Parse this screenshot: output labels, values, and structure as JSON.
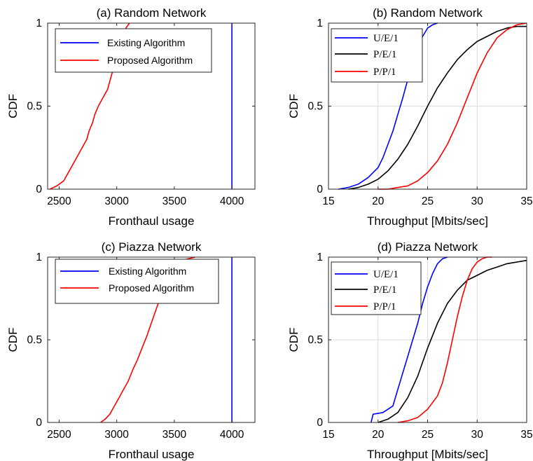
{
  "colors": {
    "blue": "#0000ff",
    "red": "#ff0000",
    "black": "#000000",
    "grid": "#dedede",
    "axes": "#262626"
  },
  "chart_data": [
    {
      "type": "line",
      "title": "(a) Random Network",
      "xlabel": "Fronthaul usage",
      "ylabel": "CDF",
      "xlim": [
        2400,
        4200
      ],
      "ylim": [
        0,
        1
      ],
      "xticks": [
        2500,
        3000,
        3500,
        4000
      ],
      "yticks": [
        0,
        0.5,
        1
      ],
      "xtick_labels": [
        "2500",
        "3000",
        "3500",
        "4000"
      ],
      "ytick_labels": [
        "0",
        "0.5",
        "1"
      ],
      "grid": false,
      "legend": {
        "location": "top-left",
        "font": "sans"
      },
      "series": [
        {
          "name": "Existing Algorithm",
          "color": "#0000ff",
          "x": [
            4000,
            4000
          ],
          "y": [
            0,
            1
          ]
        },
        {
          "name": "Proposed Algorithm",
          "color": "#ff0000",
          "x": [
            2420,
            2480,
            2540,
            2580,
            2620,
            2660,
            2700,
            2740,
            2760,
            2790,
            2810,
            2840,
            2880,
            2920,
            2960,
            2990,
            3020,
            3060,
            3090,
            3110
          ],
          "y": [
            0.0,
            0.02,
            0.05,
            0.1,
            0.15,
            0.2,
            0.25,
            0.3,
            0.35,
            0.4,
            0.45,
            0.5,
            0.55,
            0.6,
            0.7,
            0.8,
            0.9,
            0.95,
            0.98,
            1.0
          ]
        }
      ]
    },
    {
      "type": "line",
      "title": "(b) Random Network",
      "xlabel": "Throughput [Mbits/sec]",
      "ylabel": "CDF",
      "xlim": [
        15,
        35
      ],
      "ylim": [
        0,
        1
      ],
      "xticks": [
        15,
        20,
        25,
        30,
        35
      ],
      "yticks": [
        0,
        0.5,
        1
      ],
      "xtick_labels": [
        "15",
        "20",
        "25",
        "30",
        "35"
      ],
      "ytick_labels": [
        "0",
        "0.5",
        "1"
      ],
      "grid": true,
      "legend": {
        "location": "top-left",
        "font": "serif"
      },
      "series": [
        {
          "name": "U/E/1",
          "color": "#0000ff",
          "x": [
            16,
            17,
            18,
            19,
            19.5,
            20,
            20.5,
            21,
            21.5,
            22,
            22.5,
            23,
            23.5,
            24,
            24.5,
            25,
            25.5,
            26
          ],
          "y": [
            0.0,
            0.01,
            0.03,
            0.07,
            0.1,
            0.13,
            0.19,
            0.27,
            0.35,
            0.45,
            0.55,
            0.66,
            0.75,
            0.85,
            0.92,
            0.97,
            0.99,
            1.0
          ]
        },
        {
          "name": "P/E/1",
          "color": "#000000",
          "x": [
            17,
            18,
            19,
            20,
            21,
            22,
            23,
            24,
            25,
            26,
            27,
            28,
            29,
            30,
            31,
            32,
            33,
            34,
            35
          ],
          "y": [
            0.0,
            0.01,
            0.03,
            0.06,
            0.11,
            0.18,
            0.27,
            0.38,
            0.5,
            0.61,
            0.7,
            0.78,
            0.84,
            0.89,
            0.92,
            0.95,
            0.97,
            0.98,
            0.98
          ]
        },
        {
          "name": "P/P/1",
          "color": "#ff0000",
          "x": [
            20,
            21,
            22,
            23,
            24,
            25,
            26,
            27,
            28,
            29,
            30,
            31,
            32,
            33,
            34,
            35
          ],
          "y": [
            0.0,
            0.0,
            0.01,
            0.02,
            0.05,
            0.1,
            0.17,
            0.27,
            0.4,
            0.55,
            0.7,
            0.82,
            0.91,
            0.96,
            0.99,
            1.0
          ]
        }
      ]
    },
    {
      "type": "line",
      "title": "(c) Piazza Network",
      "xlabel": "Fronthaul usage",
      "ylabel": "CDF",
      "xlim": [
        2400,
        4200
      ],
      "ylim": [
        0,
        1
      ],
      "xticks": [
        2500,
        3000,
        3500,
        4000
      ],
      "yticks": [
        0,
        0.5,
        1
      ],
      "xtick_labels": [
        "2500",
        "3000",
        "3500",
        "4000"
      ],
      "ytick_labels": [
        "0",
        "0.5",
        "1"
      ],
      "grid": false,
      "legend": {
        "location": "top-left",
        "font": "sans"
      },
      "series": [
        {
          "name": "Existing Algorithm",
          "color": "#0000ff",
          "x": [
            4000,
            4000
          ],
          "y": [
            0,
            1
          ]
        },
        {
          "name": "Proposed Algorithm",
          "color": "#ff0000",
          "x": [
            2860,
            2900,
            2940,
            2980,
            3020,
            3060,
            3100,
            3140,
            3180,
            3220,
            3260,
            3300,
            3340,
            3380,
            3420,
            3460,
            3500,
            3560,
            3620,
            3680
          ],
          "y": [
            0.0,
            0.02,
            0.05,
            0.1,
            0.15,
            0.2,
            0.25,
            0.32,
            0.38,
            0.45,
            0.52,
            0.6,
            0.68,
            0.76,
            0.84,
            0.9,
            0.95,
            0.98,
            0.99,
            1.0
          ]
        }
      ]
    },
    {
      "type": "line",
      "title": "(d) Piazza Network",
      "xlabel": "Throughput [Mbits/sec]",
      "ylabel": "CDF",
      "xlim": [
        15,
        35
      ],
      "ylim": [
        0,
        1
      ],
      "xticks": [
        15,
        20,
        25,
        30,
        35
      ],
      "yticks": [
        0,
        0.5,
        1
      ],
      "xtick_labels": [
        "15",
        "20",
        "25",
        "30",
        "35"
      ],
      "ytick_labels": [
        "0",
        "0.5",
        "1"
      ],
      "grid": true,
      "legend": {
        "location": "top-left",
        "font": "serif"
      },
      "series": [
        {
          "name": "U/E/1",
          "color": "#0000ff",
          "x": [
            19.3,
            19.5,
            20.5,
            21.5,
            22,
            22.5,
            23,
            23.5,
            24,
            24.5,
            25,
            25.5,
            26,
            26.5,
            27
          ],
          "y": [
            0.0,
            0.05,
            0.06,
            0.1,
            0.2,
            0.3,
            0.4,
            0.5,
            0.6,
            0.72,
            0.82,
            0.9,
            0.96,
            0.99,
            1.0
          ]
        },
        {
          "name": "P/E/1",
          "color": "#000000",
          "x": [
            20,
            21,
            22,
            23,
            24,
            25,
            26,
            27,
            28,
            29,
            30,
            31,
            32,
            33,
            34,
            35
          ],
          "y": [
            0.0,
            0.02,
            0.06,
            0.15,
            0.28,
            0.45,
            0.6,
            0.72,
            0.8,
            0.86,
            0.89,
            0.92,
            0.94,
            0.96,
            0.97,
            0.98
          ]
        },
        {
          "name": "P/P/1",
          "color": "#ff0000",
          "x": [
            22,
            23,
            24,
            25,
            26,
            26.5,
            27,
            27.5,
            28,
            28.5,
            29,
            29.5,
            30,
            30.5,
            31,
            31.5
          ],
          "y": [
            0.0,
            0.01,
            0.03,
            0.08,
            0.16,
            0.24,
            0.36,
            0.5,
            0.64,
            0.76,
            0.86,
            0.93,
            0.97,
            0.99,
            1.0,
            1.0
          ]
        }
      ]
    }
  ]
}
